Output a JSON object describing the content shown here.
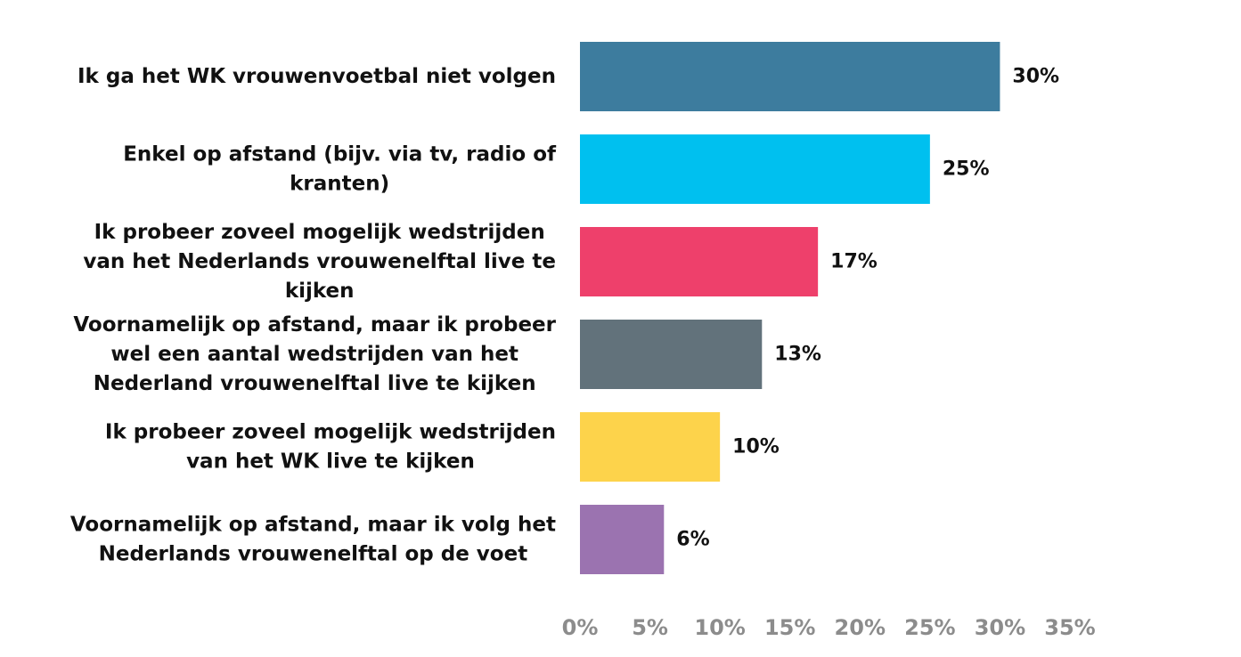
{
  "chart_data": {
    "type": "bar",
    "orientation": "horizontal",
    "categories": [
      "Ik ga het WK vrouwenvoetbal niet volgen",
      "Enkel op afstand (bijv. via tv, radio of kranten)",
      "Ik probeer zoveel mogelijk wedstrijden van het Nederlands vrouwenelftal live te kijken",
      "Voornamelijk op afstand, maar ik probeer wel een aantal wedstrijden van het Nederland vrouwenelftal live te kijken",
      "Ik probeer zoveel mogelijk wedstrijden van het WK live te kijken",
      "Voornamelijk op afstand, maar ik volg het Nederlands vrouwenelftal op de voet"
    ],
    "category_lines": [
      [
        "Ik ga het WK vrouwenvoetbal niet volgen"
      ],
      [
        "Enkel op afstand (bijv. via tv, radio of",
        "kranten)"
      ],
      [
        "Ik probeer zoveel mogelijk wedstrijden",
        "van het Nederlands vrouwenelftal live te",
        "kijken"
      ],
      [
        "Voornamelijk op afstand, maar ik probeer",
        "wel een aantal wedstrijden van het",
        "Nederland vrouwenelftal live te kijken"
      ],
      [
        "Ik probeer zoveel mogelijk wedstrijden",
        "van het WK live te kijken"
      ],
      [
        "Voornamelijk op afstand, maar ik volg het",
        "Nederlands vrouwenelftal op de voet"
      ]
    ],
    "values": [
      30,
      25,
      17,
      13,
      10,
      6
    ],
    "value_labels": [
      "30%",
      "25%",
      "17%",
      "13%",
      "10%",
      "6%"
    ],
    "colors": [
      "#3d7c9e",
      "#00c0ef",
      "#ee406b",
      "#62727b",
      "#fdd34b",
      "#9b73b0"
    ],
    "xlim": [
      0,
      35
    ],
    "xticks": [
      0,
      5,
      10,
      15,
      20,
      25,
      30,
      35
    ],
    "xtick_labels": [
      "0%",
      "5%",
      "10%",
      "15%",
      "20%",
      "25%",
      "30%",
      "35%"
    ],
    "title": "",
    "xlabel": "",
    "ylabel": "",
    "grid": false,
    "legend": "none"
  }
}
